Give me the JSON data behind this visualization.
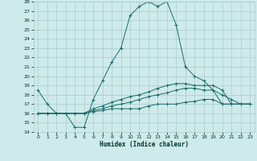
{
  "title": "",
  "xlabel": "Humidex (Indice chaleur)",
  "ylabel": "",
  "bg_color": "#ceeaea",
  "grid_color": "#a8cccc",
  "line_color": "#1a6b6b",
  "xlim": [
    -0.5,
    23.5
  ],
  "ylim": [
    14,
    28
  ],
  "xticks": [
    0,
    1,
    2,
    3,
    4,
    5,
    6,
    7,
    8,
    9,
    10,
    11,
    12,
    13,
    14,
    15,
    16,
    17,
    18,
    19,
    20,
    21,
    22,
    23
  ],
  "yticks": [
    14,
    15,
    16,
    17,
    18,
    19,
    20,
    21,
    22,
    23,
    24,
    25,
    26,
    27,
    28
  ],
  "series": [
    {
      "x": [
        0,
        1,
        2,
        3,
        4,
        5,
        6,
        7,
        8,
        9,
        10,
        11,
        12,
        13,
        14,
        15,
        16,
        17,
        18,
        19,
        20,
        21,
        22,
        23
      ],
      "y": [
        18.5,
        17,
        16,
        16,
        14.5,
        14.5,
        17.5,
        19.5,
        21.5,
        23,
        26.5,
        27.5,
        28,
        27.5,
        28,
        25.5,
        21,
        20,
        19.5,
        18.5,
        17,
        17,
        17,
        17
      ]
    },
    {
      "x": [
        0,
        1,
        2,
        3,
        4,
        5,
        6,
        7,
        8,
        9,
        10,
        11,
        12,
        13,
        14,
        15,
        16,
        17,
        18,
        19,
        20,
        21,
        22,
        23
      ],
      "y": [
        16,
        16,
        16,
        16,
        16,
        16,
        16.2,
        16.3,
        16.5,
        16.5,
        16.5,
        16.5,
        16.8,
        17,
        17,
        17,
        17.2,
        17.3,
        17.5,
        17.5,
        17,
        17,
        17,
        17
      ]
    },
    {
      "x": [
        0,
        1,
        2,
        3,
        4,
        5,
        6,
        7,
        8,
        9,
        10,
        11,
        12,
        13,
        14,
        15,
        16,
        17,
        18,
        19,
        20,
        21,
        22,
        23
      ],
      "y": [
        16,
        16,
        16,
        16,
        16,
        16,
        16.3,
        16.5,
        16.8,
        17,
        17.2,
        17.5,
        17.8,
        18,
        18.2,
        18.5,
        18.7,
        18.7,
        18.5,
        18.5,
        18,
        17.5,
        17,
        17
      ]
    },
    {
      "x": [
        0,
        1,
        2,
        3,
        4,
        5,
        6,
        7,
        8,
        9,
        10,
        11,
        12,
        13,
        14,
        15,
        16,
        17,
        18,
        19,
        20,
        21,
        22,
        23
      ],
      "y": [
        16,
        16,
        16,
        16,
        16,
        16,
        16.5,
        16.8,
        17.2,
        17.5,
        17.8,
        18,
        18.3,
        18.7,
        19,
        19.2,
        19.2,
        19,
        19,
        19,
        18.5,
        17,
        17,
        17
      ]
    }
  ]
}
